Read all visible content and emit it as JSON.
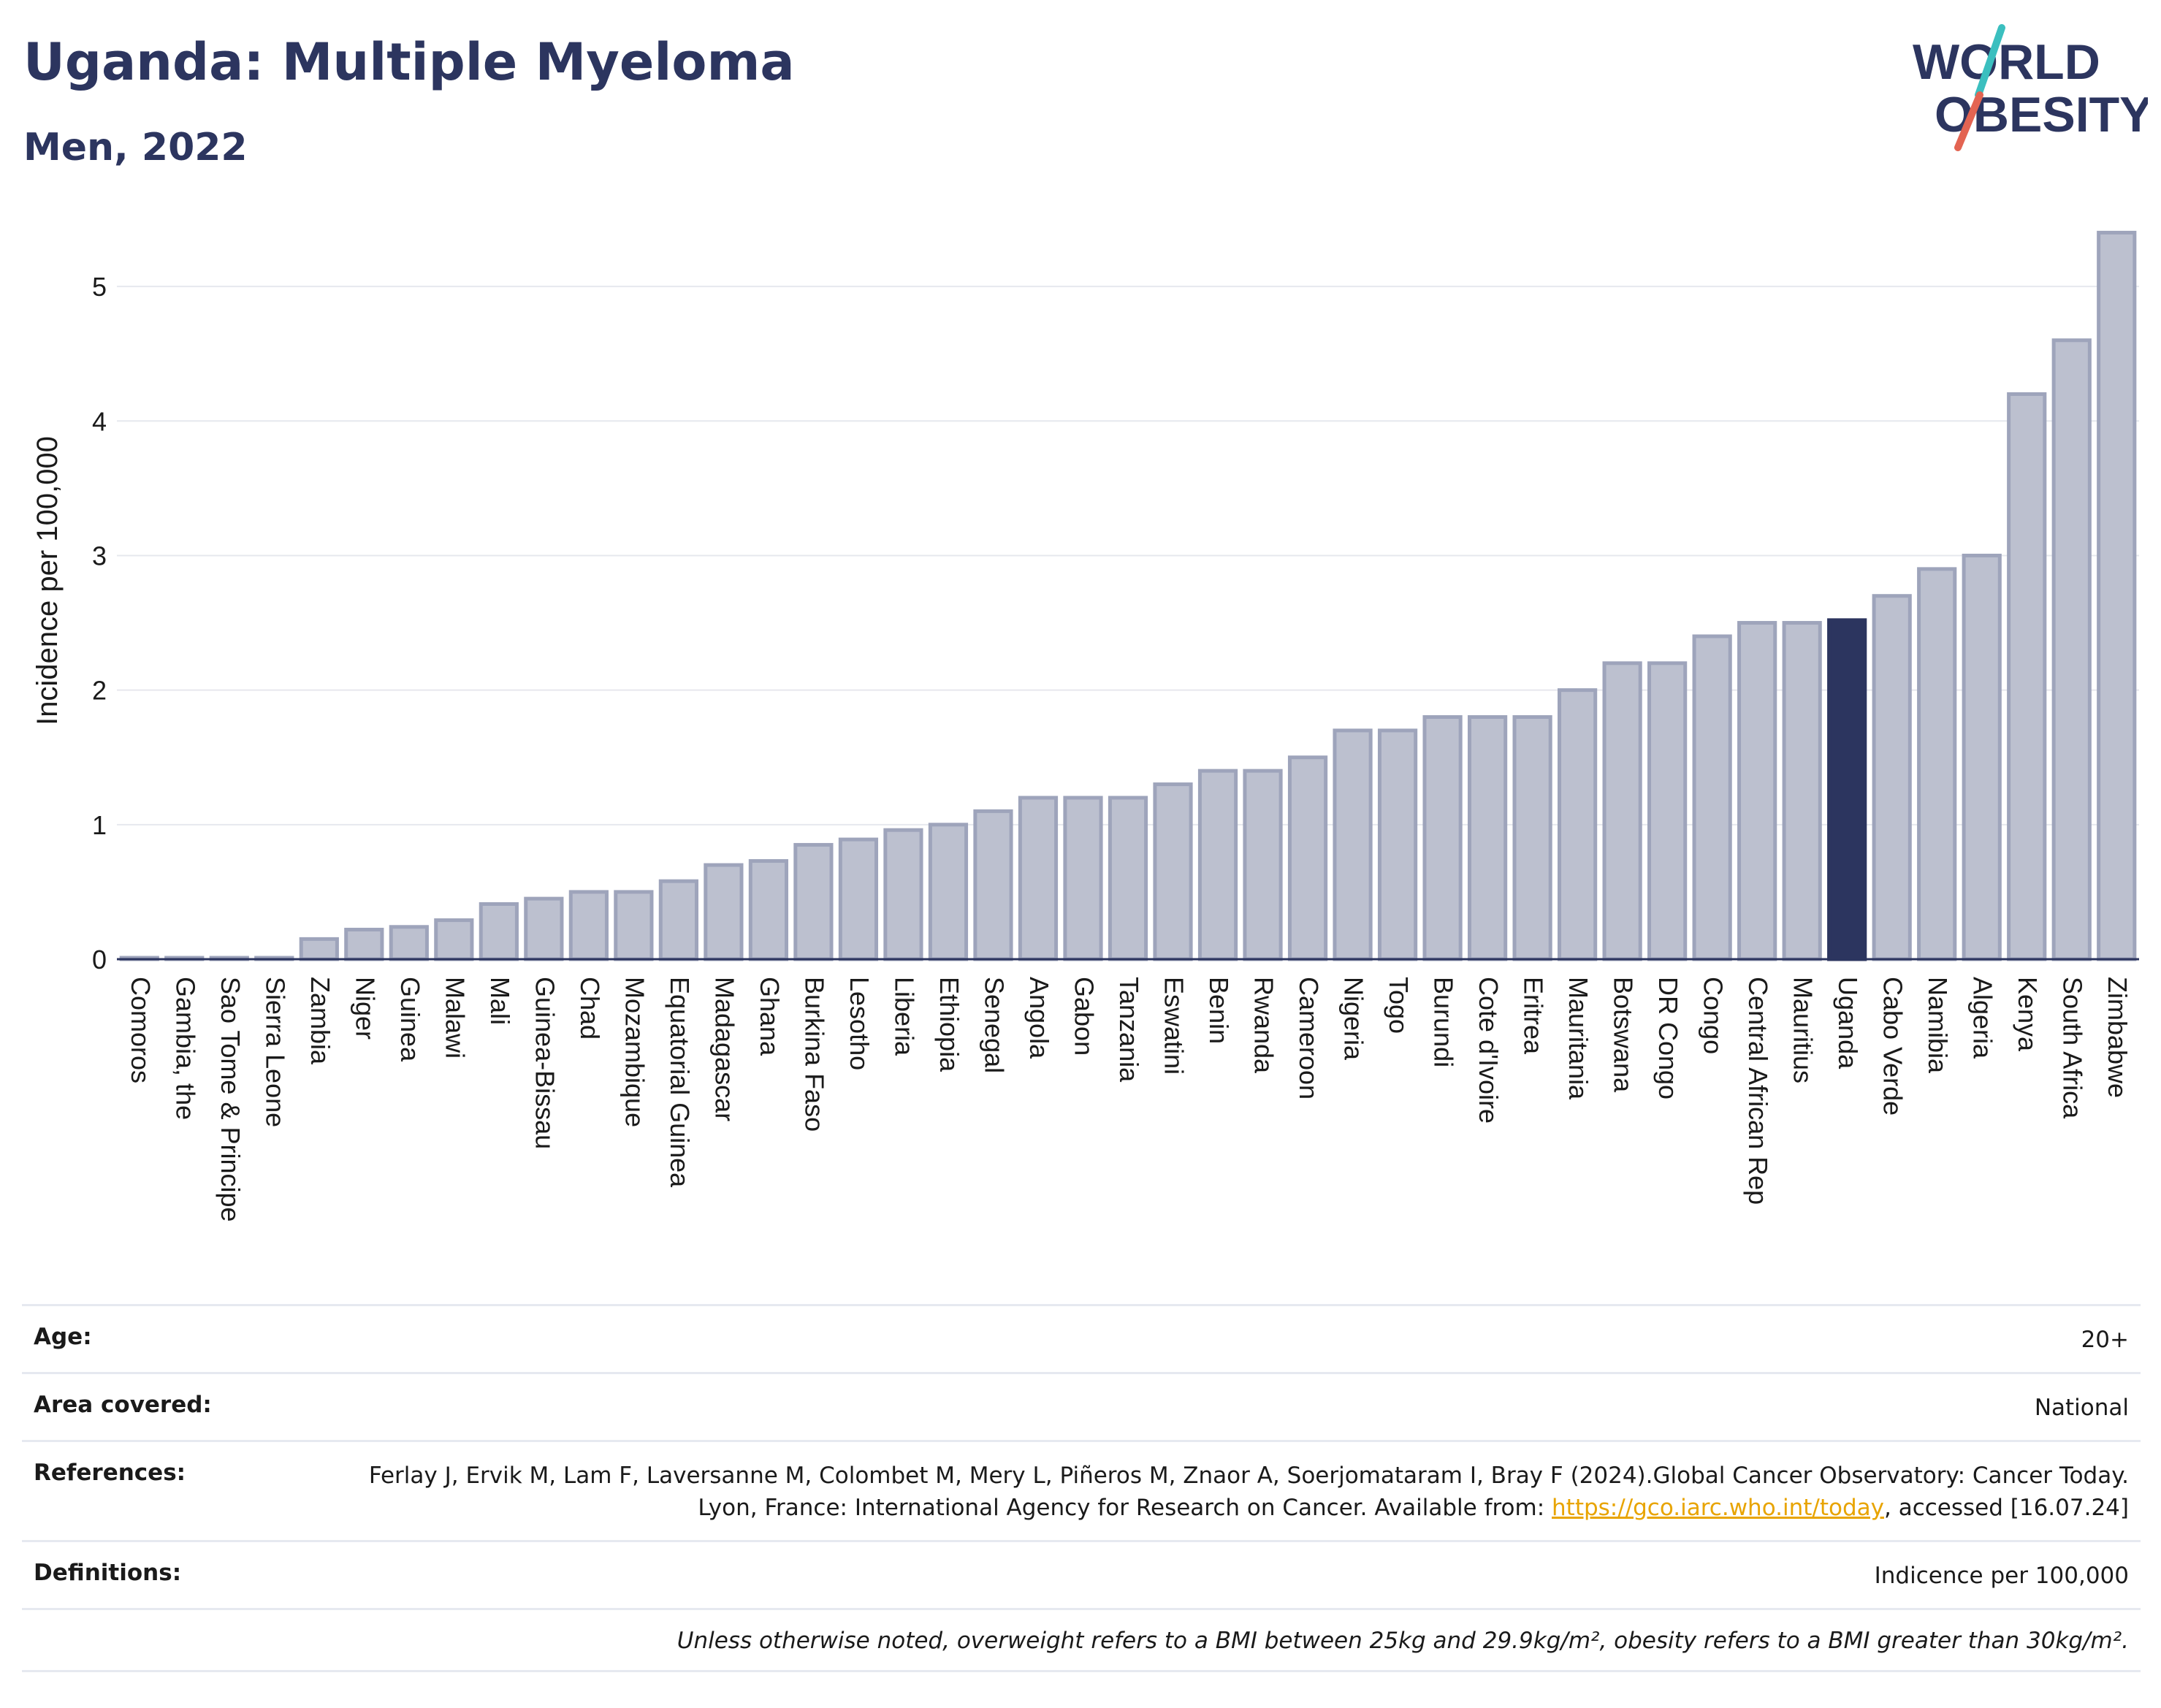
{
  "header": {
    "title": "Uganda: Multiple Myeloma",
    "subtitle": "Men, 2022"
  },
  "logo": {
    "line1": "WORLD",
    "line2": "OBESITY",
    "colors": {
      "text": "#2c355f",
      "slash_teal": "#3bbfbf",
      "slash_red": "#e36452"
    }
  },
  "colors": {
    "bar_fill": "#bcc0cf",
    "bar_stroke": "#9ea4bb",
    "highlight": "#2c355f",
    "grid": "#e6e8ee",
    "axis": "#2c355f"
  },
  "chart_data": {
    "type": "bar",
    "title": "Uganda: Multiple Myeloma",
    "subtitle": "Men, 2022",
    "xlabel": "",
    "ylabel": "Incidence per 100,000",
    "ylim": [
      0,
      5.5
    ],
    "yticks": [
      0,
      1,
      2,
      3,
      4,
      5
    ],
    "grid": true,
    "highlight_category": "Uganda",
    "categories": [
      "Comoros",
      "Gambia, the",
      "Sao Tome & Principe",
      "Sierra Leone",
      "Zambia",
      "Niger",
      "Guinea",
      "Malawi",
      "Mali",
      "Guinea-Bissau",
      "Chad",
      "Mozambique",
      "Equatorial Guinea",
      "Madagascar",
      "Ghana",
      "Burkina Faso",
      "Lesotho",
      "Liberia",
      "Ethiopia",
      "Senegal",
      "Angola",
      "Gabon",
      "Tanzania",
      "Eswatini",
      "Benin",
      "Rwanda",
      "Cameroon",
      "Nigeria",
      "Togo",
      "Burundi",
      "Cote d'Ivoire",
      "Eritrea",
      "Mauritania",
      "Botswana",
      "DR Congo",
      "Congo",
      "Central African Rep",
      "Mauritius",
      "Uganda",
      "Cabo Verde",
      "Namibia",
      "Algeria",
      "Kenya",
      "South Africa",
      "Zimbabwe"
    ],
    "values": [
      0.01,
      0.01,
      0.01,
      0.01,
      0.15,
      0.22,
      0.24,
      0.29,
      0.41,
      0.45,
      0.5,
      0.5,
      0.58,
      0.7,
      0.73,
      0.85,
      0.89,
      0.96,
      1.0,
      1.1,
      1.2,
      1.2,
      1.2,
      1.3,
      1.4,
      1.4,
      1.5,
      1.7,
      1.7,
      1.8,
      1.8,
      1.8,
      2.0,
      2.2,
      2.2,
      2.4,
      2.5,
      2.5,
      2.52,
      2.7,
      2.9,
      3.0,
      4.2,
      4.6,
      5.4
    ]
  },
  "meta": {
    "rows": [
      {
        "label": "Age:",
        "value": "20+"
      },
      {
        "label": "Area covered:",
        "value": "National"
      },
      {
        "label": "References:",
        "value_before": "Ferlay J, Ervik M, Lam F, Laversanne M, Colombet M, Mery L, Piñeros M, Znaor A, Soerjomataram I, Bray F (2024).Global Cancer Observatory: Cancer Today. Lyon, France: International Agency for Research on Cancer. Available from: ",
        "link": "https://gco.iarc.who.int/today",
        "value_after": ", accessed [16.07.24]"
      },
      {
        "label": "Definitions:",
        "value": "Indicence per 100,000"
      }
    ],
    "note": "Unless otherwise noted, overweight refers to a BMI between 25kg and 29.9kg/m², obesity refers to a BMI greater than 30kg/m²."
  }
}
